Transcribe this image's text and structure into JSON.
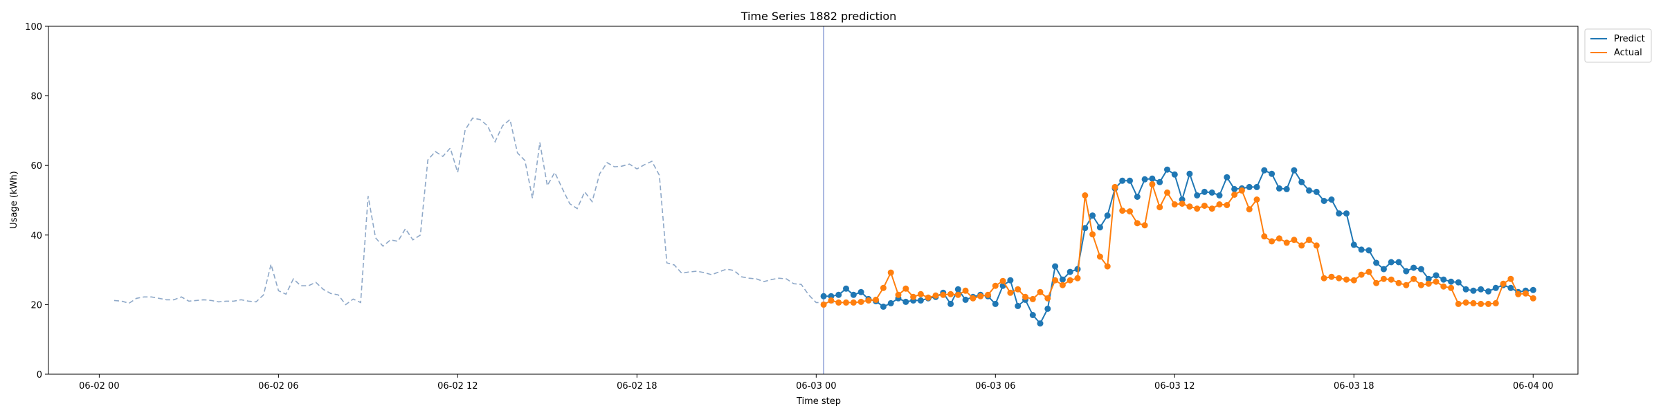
{
  "chart_data": {
    "type": "line",
    "title": "Time Series 1882 prediction",
    "xlabel": "Time step",
    "ylabel": "Usage (kWh)",
    "ylim": [
      0,
      100
    ],
    "yticks": [
      0,
      20,
      40,
      60,
      80,
      100
    ],
    "xlim_hours": [
      -1.7,
      49.5
    ],
    "xticks": [
      {
        "h": 0,
        "label": "06-02 00"
      },
      {
        "h": 6,
        "label": "06-02 06"
      },
      {
        "h": 12,
        "label": "06-02 12"
      },
      {
        "h": 18,
        "label": "06-02 18"
      },
      {
        "h": 24,
        "label": "06-03 00"
      },
      {
        "h": 30,
        "label": "06-03 06"
      },
      {
        "h": 36,
        "label": "06-03 12"
      },
      {
        "h": 42,
        "label": "06-03 18"
      },
      {
        "h": 48,
        "label": "06-04 00"
      }
    ],
    "split_hour": 24.25,
    "history": {
      "start_hour": 0.5,
      "step_hours": 0.25,
      "values": [
        21.2,
        21.0,
        20.4,
        21.8,
        22.2,
        22.2,
        21.8,
        21.4,
        21.4,
        22.2,
        21.0,
        21.2,
        21.4,
        21.2,
        20.8,
        21.0,
        21.0,
        21.4,
        21.0,
        20.8,
        22.8,
        31.6,
        24.0,
        23.0,
        27.4,
        25.4,
        25.4,
        26.4,
        24.4,
        23.2,
        22.8,
        20.0,
        21.6,
        20.6,
        51.2,
        39.2,
        36.8,
        38.6,
        38.2,
        41.8,
        38.6,
        40.0,
        61.6,
        64.0,
        62.6,
        65.0,
        58.0,
        70.2,
        73.6,
        73.2,
        71.4,
        66.8,
        71.4,
        73.2,
        63.6,
        61.4,
        50.6,
        66.6,
        54.2,
        58.0,
        53.4,
        49.0,
        47.6,
        52.4,
        49.6,
        57.6,
        60.8,
        59.6,
        59.8,
        60.4,
        59.0,
        60.2,
        61.2,
        57.2,
        32.0,
        31.4,
        29.0,
        29.4,
        29.6,
        29.2,
        28.6,
        29.4,
        30.2,
        29.8,
        28.0,
        27.6,
        27.4,
        26.6,
        27.2,
        27.6,
        27.4,
        26.0,
        25.8,
        22.8,
        20.6,
        20.6,
        20.6,
        20.4,
        20.4
      ]
    },
    "series": [
      {
        "name": "Predict",
        "color": "#1f77b4",
        "start_hour": 24.25,
        "step_hours": 0.25,
        "values": [
          22.4,
          22.4,
          22.8,
          24.6,
          22.8,
          23.6,
          21.6,
          21.0,
          19.4,
          20.4,
          21.8,
          20.8,
          21.2,
          21.2,
          21.8,
          22.2,
          23.4,
          20.2,
          24.4,
          21.4,
          22.2,
          22.8,
          22.4,
          20.2,
          25.4,
          27.0,
          19.6,
          21.4,
          17.0,
          14.6,
          18.8,
          31.0,
          27.2,
          29.4,
          30.2,
          42.0,
          45.6,
          42.2,
          45.6,
          53.4,
          55.6,
          55.6,
          51.0,
          56.0,
          56.2,
          55.2,
          58.8,
          57.4,
          50.2,
          57.6,
          51.4,
          52.4,
          52.2,
          51.4,
          56.6,
          53.2,
          53.4,
          53.8,
          53.8,
          58.6,
          57.6,
          53.4,
          53.2,
          58.6,
          55.2,
          52.8,
          52.4,
          49.8,
          50.2,
          46.2,
          46.2,
          37.2,
          35.8,
          35.6,
          32.0,
          30.2,
          32.2,
          32.2,
          29.6,
          30.6,
          30.2,
          27.4,
          28.4,
          27.2,
          26.6,
          26.4,
          24.4,
          24.0,
          24.4,
          23.8,
          24.8,
          25.6,
          24.8,
          23.6,
          24.0,
          24.2
        ]
      },
      {
        "name": "Actual",
        "color": "#ff7f0e",
        "start_hour": 24.25,
        "step_hours": 0.25,
        "values": [
          20.0,
          21.2,
          20.6,
          20.6,
          20.6,
          20.8,
          21.2,
          21.4,
          24.8,
          29.2,
          22.8,
          24.6,
          22.2,
          23.0,
          22.0,
          22.6,
          22.8,
          23.0,
          22.8,
          24.0,
          21.8,
          22.4,
          22.8,
          25.4,
          26.8,
          23.4,
          24.4,
          22.2,
          21.6,
          23.6,
          21.8,
          27.0,
          25.6,
          27.0,
          27.6,
          51.4,
          40.2,
          33.8,
          31.0,
          53.8,
          47.0,
          46.8,
          43.4,
          42.8,
          54.6,
          48.0,
          52.2,
          48.8,
          49.0,
          48.2,
          47.6,
          48.4,
          47.6,
          48.8,
          48.6,
          51.6,
          52.8,
          47.4,
          50.2,
          39.6,
          38.2,
          39.0,
          37.8,
          38.6,
          37.0,
          38.6,
          37.0,
          27.6,
          28.0,
          27.6,
          27.2,
          27.0,
          28.6,
          29.4,
          26.2,
          27.4,
          27.2,
          26.2,
          25.6,
          27.4,
          25.6,
          26.0,
          26.6,
          25.2,
          24.8,
          20.2,
          20.6,
          20.4,
          20.2,
          20.2,
          20.4,
          26.0,
          27.4,
          23.0,
          23.2,
          21.8
        ]
      }
    ],
    "legend_position": "upper-right-outside"
  }
}
